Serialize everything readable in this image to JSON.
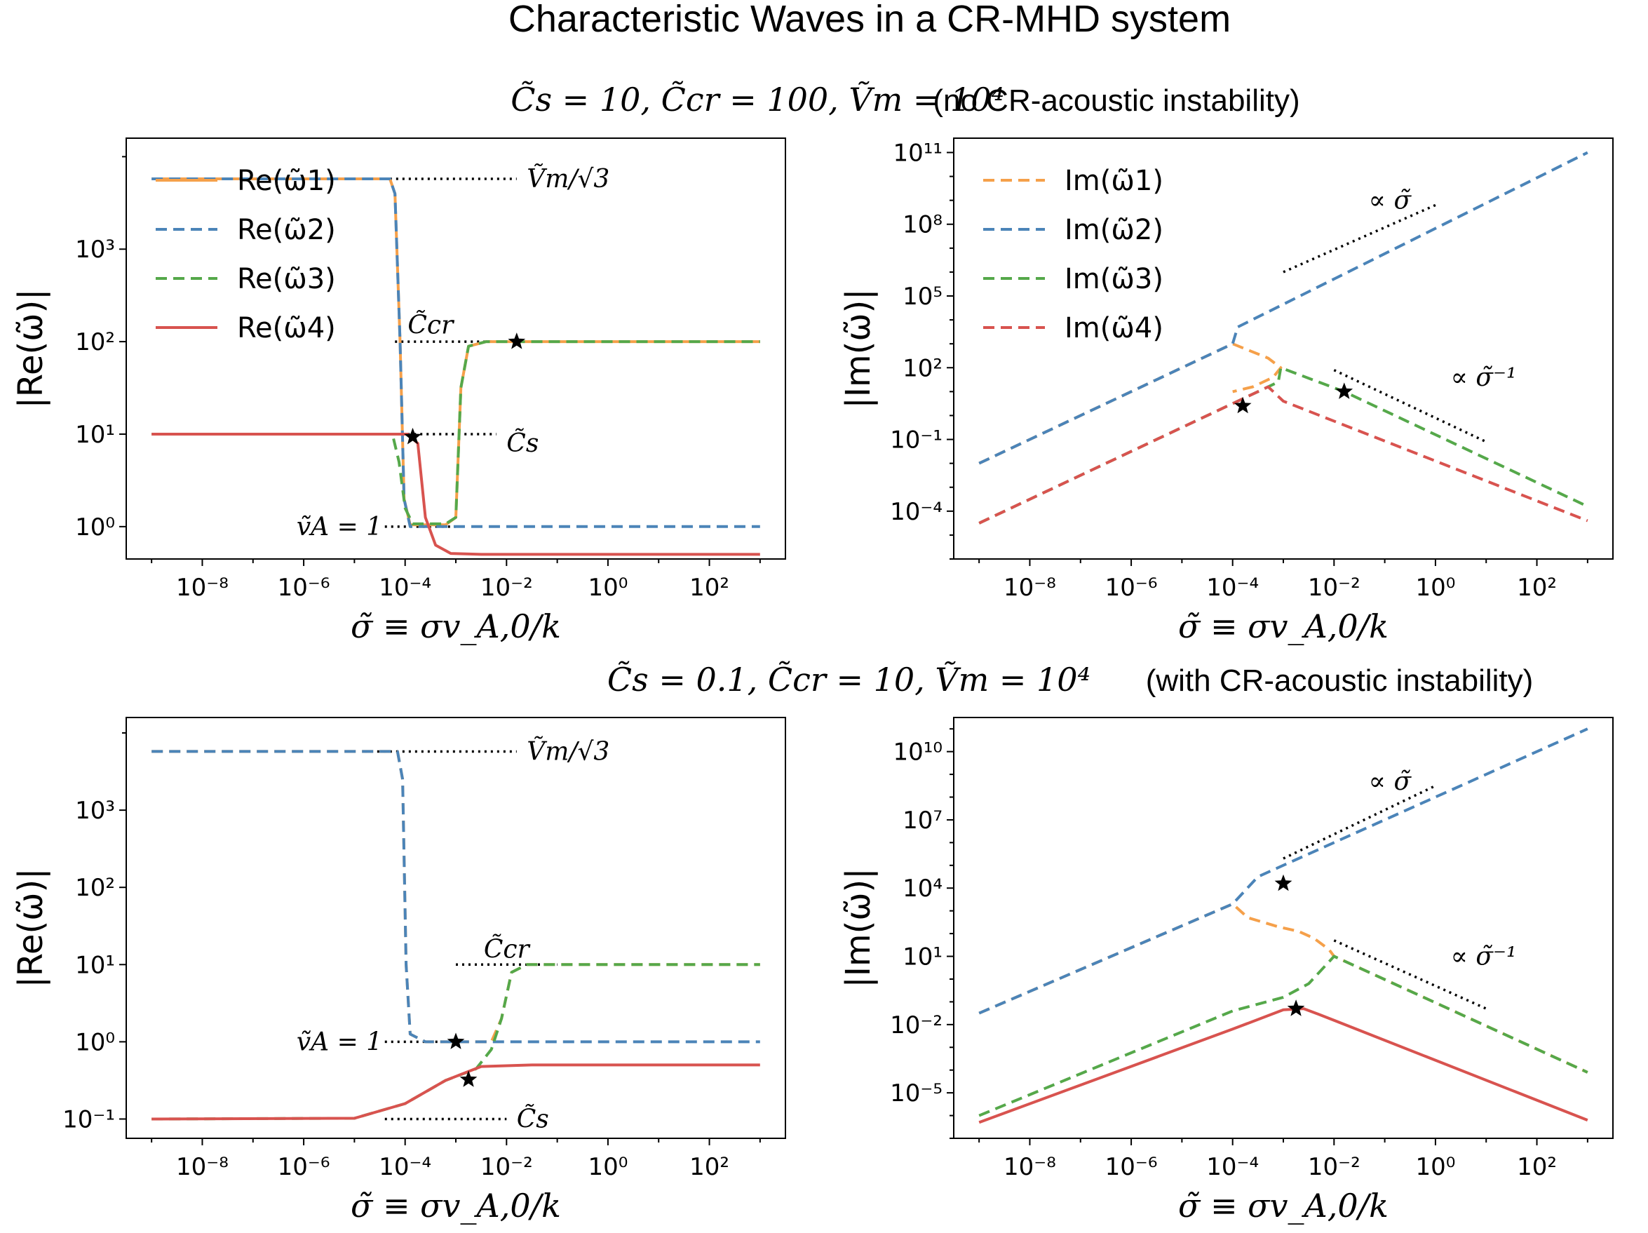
{
  "title": "Characteristic Waves in a CR-MHD system",
  "row_labels": [
    {
      "math": "C̃s = 10, C̃cr = 100, Ṽm = 10⁴",
      "note": "(no CR-acoustic instability)"
    },
    {
      "math": "C̃s = 0.1, C̃cr = 10, Ṽm = 10⁴",
      "note": "(with CR-acoustic instability)"
    }
  ],
  "colors": {
    "omega1": "#f5a04a",
    "omega2": "#4b84b8",
    "omega3": "#55a84a",
    "omega4": "#d8534f",
    "guide": "#000000"
  },
  "chart_data": [
    {
      "id": "re_top",
      "type": "line",
      "xlabel": "σ̃ ≡ σv_A,0/k",
      "ylabel": "|Re(ω̃)|",
      "xscale": "log",
      "yscale": "log",
      "xlim": [
        -9.5,
        3.5
      ],
      "ylim": [
        -0.35,
        4.2
      ],
      "xticks": [
        -8,
        -6,
        -4,
        -2,
        0,
        2
      ],
      "yticks": [
        0,
        1,
        2,
        3
      ],
      "legend": [
        "Re(ω̃1)",
        "Re(ω̃2)",
        "Re(ω̃3)",
        "Re(ω̃4)"
      ],
      "legend_position": "top-left",
      "series": [
        {
          "name": "Re(ω̃1)",
          "key": "omega1",
          "style": "solid",
          "points": [
            [
              -9,
              3.76
            ],
            [
              -4.3,
              3.76
            ],
            [
              -4.2,
              3.6
            ],
            [
              -4.1,
              2.0
            ],
            [
              -4.02,
              0.3
            ],
            [
              -3.9,
              0.02
            ],
            [
              -3.2,
              0.02
            ],
            [
              -3.0,
              0.1
            ],
            [
              -2.9,
              1.5
            ],
            [
              -2.75,
              1.95
            ],
            [
              -2.4,
              2.0
            ],
            [
              3,
              2.0
            ]
          ]
        },
        {
          "name": "Re(ω̃2)",
          "key": "omega2",
          "style": "dashed",
          "points": [
            [
              -9,
              3.76
            ],
            [
              -4.3,
              3.76
            ],
            [
              -4.2,
              3.6
            ],
            [
              -4.1,
              2.0
            ],
            [
              -4.02,
              0.3
            ],
            [
              -3.9,
              0.0
            ],
            [
              3,
              0.0
            ]
          ]
        },
        {
          "name": "Re(ω̃3)",
          "key": "omega3",
          "style": "dashed",
          "points": [
            [
              -9,
              1.0
            ],
            [
              -4.25,
              1.0
            ],
            [
              -4.12,
              0.7
            ],
            [
              -4.0,
              0.2
            ],
            [
              -3.85,
              0.03
            ],
            [
              -3.2,
              0.03
            ],
            [
              -3.0,
              0.1
            ],
            [
              -2.9,
              1.5
            ],
            [
              -2.75,
              1.95
            ],
            [
              -2.4,
              2.0
            ],
            [
              3,
              2.0
            ]
          ]
        },
        {
          "name": "Re(ω̃4)",
          "key": "omega4",
          "style": "solid",
          "points": [
            [
              -9,
              1.0
            ],
            [
              -3.95,
              1.0
            ],
            [
              -3.75,
              0.9
            ],
            [
              -3.6,
              0.1
            ],
            [
              -3.4,
              -0.2
            ],
            [
              -3.1,
              -0.29
            ],
            [
              -2.5,
              -0.3
            ],
            [
              3,
              -0.3
            ]
          ]
        }
      ],
      "guides": [
        [
          [
            -4.8,
            3.76
          ],
          [
            -1.8,
            3.76
          ]
        ],
        [
          [
            -4.2,
            2.0
          ],
          [
            -2.2,
            2.0
          ]
        ],
        [
          [
            -4.2,
            1.0
          ],
          [
            -2.2,
            1.0
          ]
        ],
        [
          [
            -4.4,
            0.0
          ],
          [
            -3.0,
            0.0
          ]
        ]
      ],
      "markers": [
        [
          -3.85,
          0.97
        ],
        [
          -1.8,
          2.0
        ]
      ],
      "annotations": [
        "Ṽm/√3",
        "C̃cr",
        "C̃s",
        "ṽA = 1"
      ]
    },
    {
      "id": "im_top",
      "type": "line",
      "xlabel": "σ̃ ≡ σv_A,0/k",
      "ylabel": "|Im(ω̃)|",
      "xscale": "log",
      "yscale": "log",
      "xlim": [
        -9.5,
        3.5
      ],
      "ylim": [
        -6,
        11.6
      ],
      "xticks": [
        -8,
        -6,
        -4,
        -2,
        0,
        2
      ],
      "yticks": [
        -4,
        -1,
        2,
        5,
        8,
        11
      ],
      "legend": [
        "Im(ω̃1)",
        "Im(ω̃2)",
        "Im(ω̃3)",
        "Im(ω̃4)"
      ],
      "legend_position": "top-left",
      "series": [
        {
          "name": "Im(ω̃1)",
          "key": "omega1",
          "style": "dashed",
          "points": [
            [
              -9,
              -2
            ],
            [
              -4,
              3
            ],
            [
              -3.3,
              2.4
            ],
            [
              -3.05,
              2
            ],
            [
              -3.2,
              1.6
            ],
            [
              -3.6,
              1.2
            ],
            [
              -4,
              1.0
            ]
          ]
        },
        {
          "name": "Im(ω̃2)",
          "key": "omega2",
          "style": "dashed",
          "points": [
            [
              -9,
              -2
            ],
            [
              -4,
              3
            ],
            [
              -3.9,
              3.7
            ],
            [
              3,
              11
            ]
          ]
        },
        {
          "name": "Im(ω̃3)",
          "key": "omega3",
          "style": "dashed",
          "points": [
            [
              -9,
              -4.5
            ],
            [
              -4,
              0.5
            ],
            [
              -3.1,
              1.4
            ],
            [
              -3.05,
              2
            ],
            [
              -1.8,
              1.0
            ],
            [
              3,
              -3.8
            ]
          ]
        },
        {
          "name": "Im(ω̃4)",
          "key": "omega4",
          "style": "dashed",
          "points": [
            [
              -9,
              -4.5
            ],
            [
              -4,
              0.5
            ],
            [
              -3.3,
              1.2
            ],
            [
              -3,
              0.6
            ],
            [
              3,
              -4.4
            ]
          ]
        }
      ],
      "guides": [
        [
          [
            -3,
            6
          ],
          [
            0,
            8.8
          ]
        ],
        [
          [
            -2,
            1.9
          ],
          [
            1,
            -1.1
          ]
        ]
      ],
      "markers": [
        [
          -3.8,
          0.4
        ],
        [
          -1.8,
          1.0
        ]
      ],
      "annotations": [
        "∝ σ̃",
        "∝ σ̃⁻¹"
      ]
    },
    {
      "id": "re_bottom",
      "type": "line",
      "xlabel": "σ̃ ≡ σv_A,0/k",
      "ylabel": "|Re(ω̃)|",
      "xscale": "log",
      "yscale": "log",
      "xlim": [
        -9.5,
        3.5
      ],
      "ylim": [
        -1.25,
        4.2
      ],
      "xticks": [
        -8,
        -6,
        -4,
        -2,
        0,
        2
      ],
      "yticks": [
        -1,
        0,
        1,
        2,
        3
      ],
      "legend_position": "none",
      "series": [
        {
          "name": "Re(ω̃1)",
          "key": "omega1",
          "style": "dashed",
          "points": [
            [
              -9,
              3.76
            ],
            [
              -4.15,
              3.76
            ],
            [
              -4.05,
              3.4
            ],
            [
              -3.98,
              1.0
            ],
            [
              -3.9,
              0.1
            ],
            [
              -3.6,
              0.0
            ],
            [
              -2.3,
              0.0
            ],
            [
              -2.1,
              0.3
            ],
            [
              -1.9,
              0.9
            ],
            [
              -1.6,
              1.0
            ],
            [
              3,
              1.0
            ]
          ]
        },
        {
          "name": "Re(ω̃2)",
          "key": "omega2",
          "style": "dashed",
          "points": [
            [
              -9,
              3.76
            ],
            [
              -4.15,
              3.76
            ],
            [
              -4.05,
              3.4
            ],
            [
              -3.98,
              1.0
            ],
            [
              -3.9,
              0.1
            ],
            [
              -3.6,
              0.0
            ],
            [
              3,
              0.0
            ]
          ]
        },
        {
          "name": "Re(ω̃3)",
          "key": "omega3",
          "style": "dashed",
          "points": [
            [
              -9,
              -1.0
            ],
            [
              -5,
              -0.99
            ],
            [
              -4,
              -0.8
            ],
            [
              -3.2,
              -0.5
            ],
            [
              -2.6,
              -0.35
            ],
            [
              -2.3,
              -0.1
            ],
            [
              -2.1,
              0.3
            ],
            [
              -1.9,
              0.9
            ],
            [
              -1.6,
              1.0
            ],
            [
              3,
              1.0
            ]
          ]
        },
        {
          "name": "Re(ω̃4)",
          "key": "omega4",
          "style": "solid",
          "points": [
            [
              -9,
              -1.0
            ],
            [
              -5,
              -0.99
            ],
            [
              -4,
              -0.8
            ],
            [
              -3.2,
              -0.5
            ],
            [
              -2.5,
              -0.32
            ],
            [
              -1.5,
              -0.3
            ],
            [
              3,
              -0.3
            ]
          ]
        }
      ],
      "guides": [
        [
          [
            -4.8,
            3.76
          ],
          [
            -1.8,
            3.76
          ]
        ],
        [
          [
            -3.0,
            1.0
          ],
          [
            -1.0,
            1.0
          ]
        ],
        [
          [
            -4.4,
            0.0
          ],
          [
            -3.0,
            0.0
          ]
        ],
        [
          [
            -4.4,
            -1.0
          ],
          [
            -2.0,
            -1.0
          ]
        ]
      ],
      "markers": [
        [
          -3.0,
          0.0
        ],
        [
          -2.75,
          -0.49
        ]
      ],
      "annotations": [
        "Ṽm/√3",
        "C̃cr",
        "ṽA = 1",
        "C̃s"
      ]
    },
    {
      "id": "im_bottom",
      "type": "line",
      "xlabel": "σ̃ ≡ σv_A,0/k",
      "ylabel": "|Im(ω̃)|",
      "xscale": "log",
      "yscale": "log",
      "xlim": [
        -9.5,
        3.5
      ],
      "ylim": [
        -7,
        11.5
      ],
      "xticks": [
        -8,
        -6,
        -4,
        -2,
        0,
        2
      ],
      "yticks": [
        -5,
        -2,
        1,
        4,
        7,
        10
      ],
      "legend_position": "none",
      "series": [
        {
          "name": "Im(ω̃1)",
          "key": "omega1",
          "style": "dashed",
          "points": [
            [
              -9,
              -1.5
            ],
            [
              -4,
              3.3
            ],
            [
              -3.7,
              2.7
            ],
            [
              -3.1,
              2.3
            ],
            [
              -2.7,
              2.1
            ],
            [
              -2.4,
              1.8
            ],
            [
              -2.1,
              1.3
            ],
            [
              -2.0,
              1.0
            ],
            [
              3,
              -4.1
            ]
          ]
        },
        {
          "name": "Im(ω̃2)",
          "key": "omega2",
          "style": "dashed",
          "points": [
            [
              -9,
              -1.5
            ],
            [
              -4,
              3.3
            ],
            [
              -3.5,
              4.5
            ],
            [
              3,
              11
            ]
          ]
        },
        {
          "name": "Im(ω̃3)",
          "key": "omega3",
          "style": "dashed",
          "points": [
            [
              -9,
              -6
            ],
            [
              -4,
              -1.4
            ],
            [
              -3,
              -0.8
            ],
            [
              -2.5,
              -0.2
            ],
            [
              -2.0,
              1.0
            ],
            [
              3,
              -4.1
            ]
          ]
        },
        {
          "name": "Im(ω̃4)",
          "key": "omega4",
          "style": "solid",
          "points": [
            [
              -9,
              -6.3
            ],
            [
              -4,
              -2.2
            ],
            [
              -3.0,
              -1.35
            ],
            [
              -2.6,
              -1.3
            ],
            [
              -2.3,
              -1.55
            ],
            [
              3,
              -6.2
            ]
          ]
        }
      ],
      "guides": [
        [
          [
            -3,
            5.3
          ],
          [
            0,
            8.5
          ]
        ],
        [
          [
            -2,
            1.7
          ],
          [
            1,
            -1.3
          ]
        ]
      ],
      "markers": [
        [
          -3.0,
          4.2
        ],
        [
          -2.75,
          -1.3
        ]
      ],
      "annotations": [
        "∝ σ̃",
        "∝ σ̃⁻¹"
      ]
    }
  ]
}
